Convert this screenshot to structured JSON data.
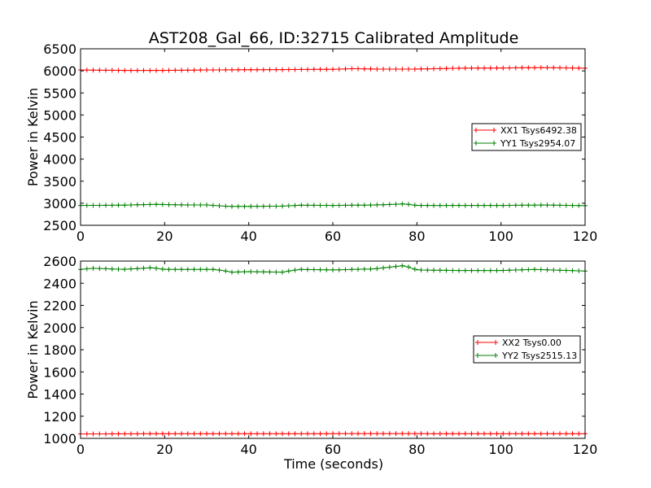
{
  "figure": {
    "title": "AST208_Gal_66, ID:32715 Calibrated Amplitude",
    "xlabel": "Time (seconds)"
  },
  "chart_data": [
    {
      "type": "line",
      "title": "AST208_Gal_66, ID:32715 Calibrated Amplitude",
      "xlabel": "",
      "ylabel": "Power in Kelvin",
      "xlim": [
        0,
        120
      ],
      "ylim": [
        2500,
        6500
      ],
      "xticks": [
        0,
        20,
        40,
        60,
        80,
        100,
        120
      ],
      "yticks": [
        2500,
        3000,
        3500,
        4000,
        4500,
        5000,
        5500,
        6000,
        6500
      ],
      "grid": false,
      "legend_position": "right",
      "series": [
        {
          "name": "XX1 Tsys6492.38",
          "color": "#ff0000",
          "marker": "plus",
          "x": [
            0,
            10,
            20,
            30,
            40,
            50,
            60,
            65,
            70,
            80,
            90,
            100,
            110,
            120
          ],
          "y": [
            6020,
            6010,
            6010,
            6020,
            6025,
            6030,
            6035,
            6050,
            6040,
            6040,
            6060,
            6065,
            6075,
            6060
          ]
        },
        {
          "name": "YY1 Tsys2954.07",
          "color": "#008000",
          "marker": "plus",
          "x": [
            0,
            10,
            18,
            25,
            30,
            35,
            40,
            48,
            52,
            60,
            70,
            77,
            80,
            90,
            100,
            110,
            120
          ],
          "y": [
            2950,
            2955,
            2975,
            2960,
            2960,
            2930,
            2930,
            2935,
            2955,
            2950,
            2960,
            2985,
            2950,
            2950,
            2950,
            2960,
            2945
          ]
        }
      ]
    },
    {
      "type": "line",
      "title": "",
      "xlabel": "Time (seconds)",
      "ylabel": "Power in Kelvin",
      "xlim": [
        0,
        120
      ],
      "ylim": [
        1000,
        2600
      ],
      "xticks": [
        0,
        20,
        40,
        60,
        80,
        100,
        120
      ],
      "yticks": [
        1000,
        1200,
        1400,
        1600,
        1800,
        2000,
        2200,
        2400,
        2600
      ],
      "grid": false,
      "legend_position": "right",
      "series": [
        {
          "name": "XX2 Tsys0.00",
          "color": "#ff0000",
          "marker": "plus",
          "x": [
            0,
            20,
            40,
            60,
            80,
            100,
            120
          ],
          "y": [
            1040,
            1042,
            1042,
            1043,
            1043,
            1042,
            1042
          ]
        },
        {
          "name": "YY2 Tsys2515.13",
          "color": "#008000",
          "marker": "plus",
          "x": [
            0,
            3,
            10,
            17,
            20,
            32,
            36,
            40,
            48,
            52,
            60,
            70,
            77,
            80,
            90,
            100,
            108,
            120
          ],
          "y": [
            2525,
            2535,
            2525,
            2540,
            2525,
            2525,
            2500,
            2505,
            2500,
            2525,
            2520,
            2530,
            2560,
            2520,
            2515,
            2515,
            2525,
            2510
          ]
        }
      ]
    }
  ]
}
